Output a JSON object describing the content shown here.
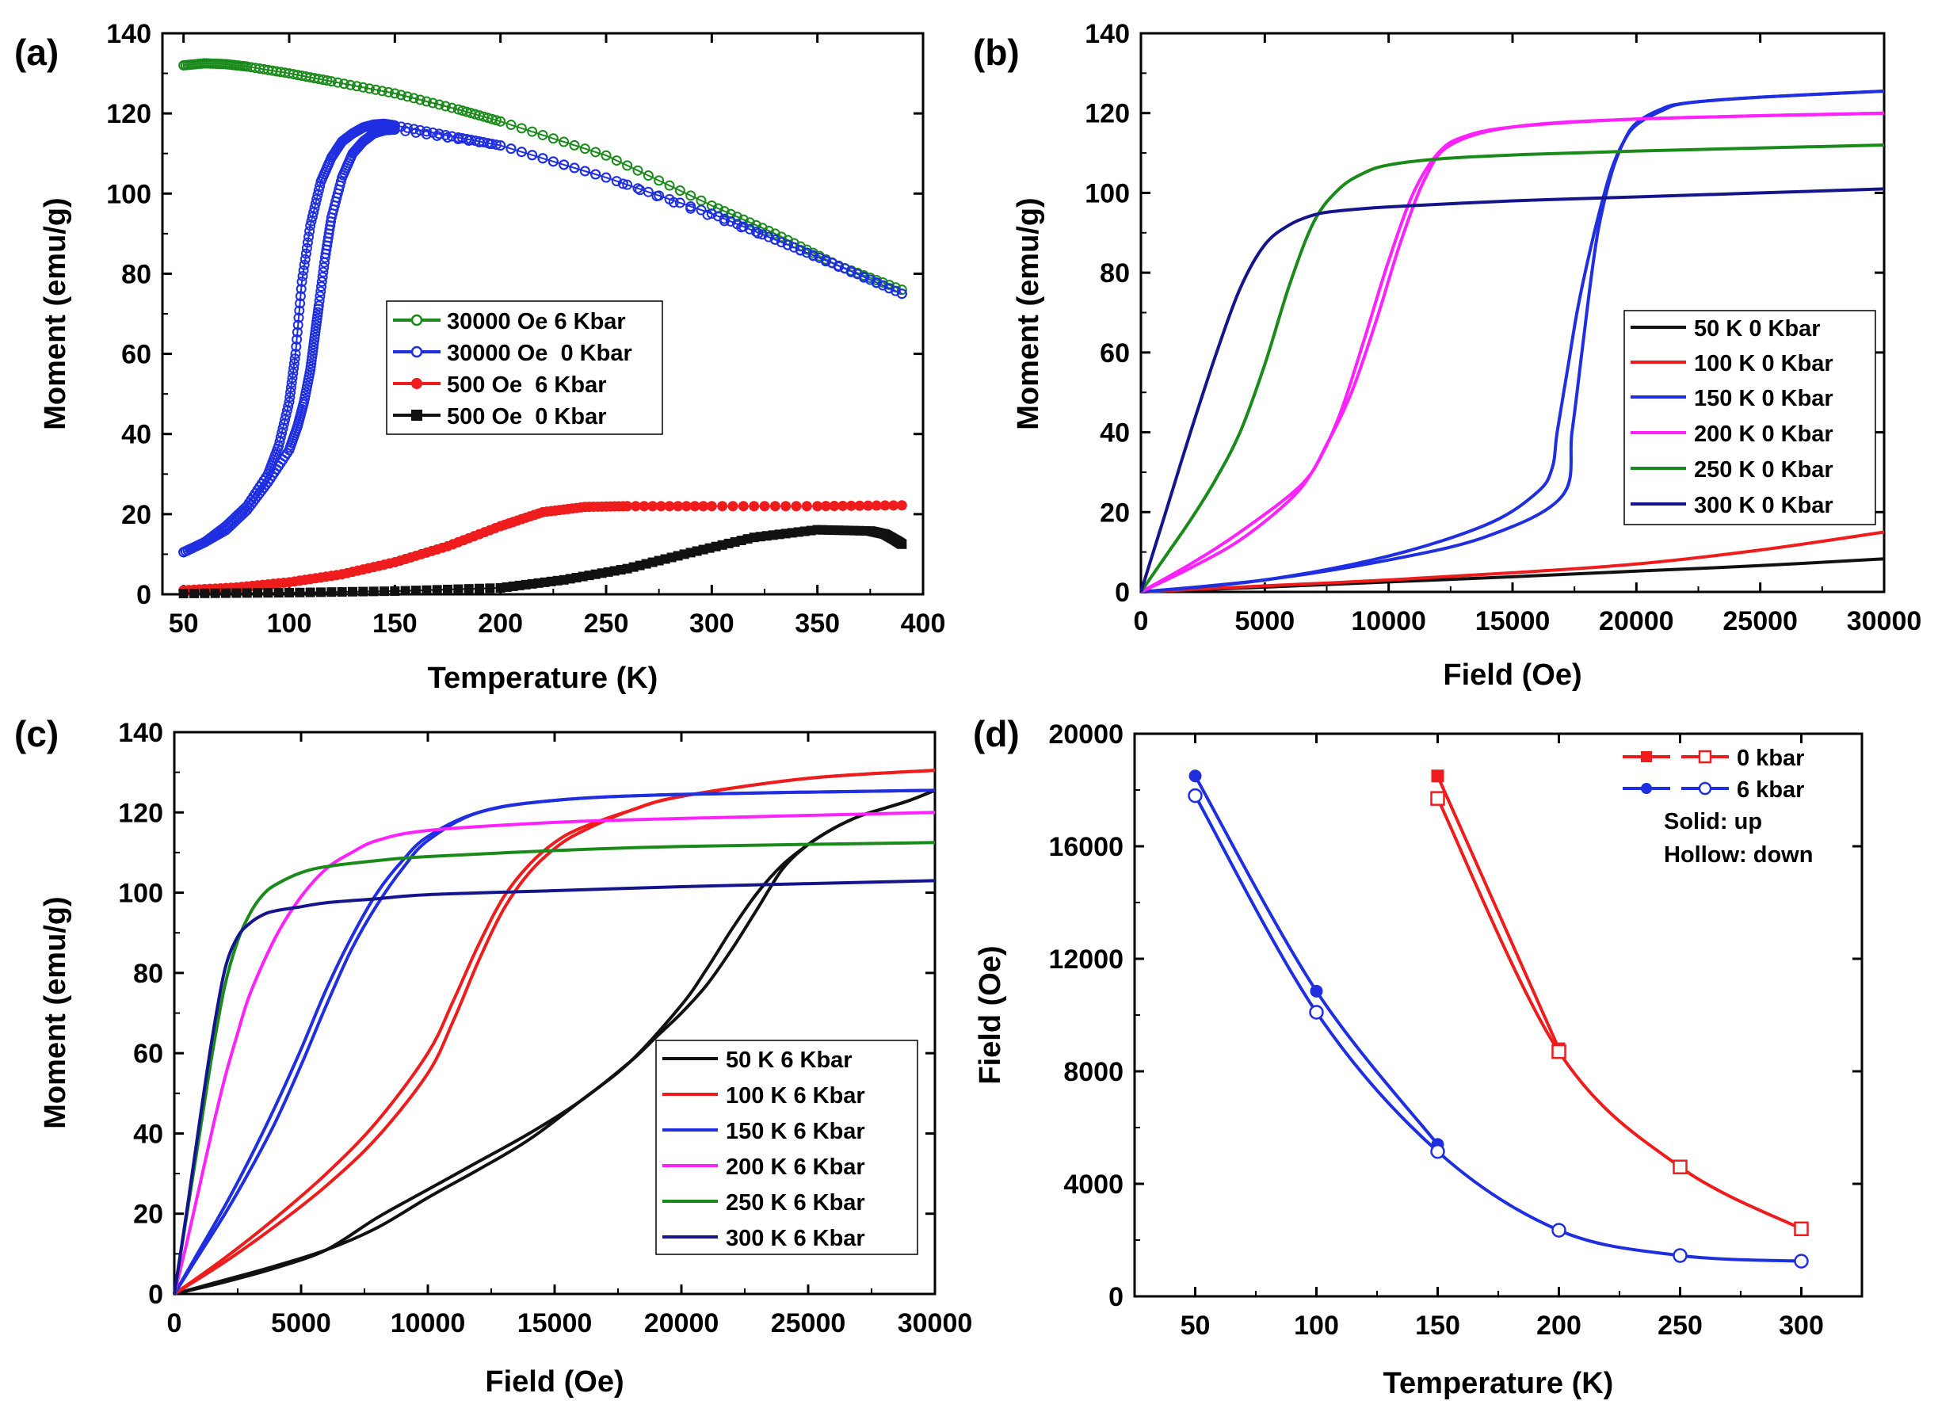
{
  "chart_data": [
    {
      "panel": "(a)",
      "type": "scatter",
      "xlabel": "Temperature (K)",
      "ylabel": "Moment (emu/g)",
      "xlim": [
        40,
        400
      ],
      "ylim": [
        0,
        140
      ],
      "xticks": [
        50,
        100,
        150,
        200,
        250,
        300,
        350,
        400
      ],
      "yticks": [
        0,
        20,
        40,
        60,
        80,
        100,
        120,
        140
      ],
      "legend_position": "center",
      "series": [
        {
          "name": "30000 Oe 6 Kbar",
          "color": "#1a8a1a",
          "marker": "open-circle",
          "x": [
            50,
            60,
            70,
            80,
            100,
            120,
            150,
            180,
            200,
            250,
            300,
            330,
            360,
            390
          ],
          "y": [
            132,
            132.5,
            132.3,
            131.7,
            130,
            128,
            125,
            121,
            118,
            109.5,
            97,
            90,
            82,
            76
          ]
        },
        {
          "name": "30000 Oe  0 Kbar",
          "color": "#1f2fe0",
          "marker": "open-circle",
          "x": [
            50,
            60,
            70,
            80,
            90,
            95,
            100,
            103,
            106,
            110,
            115,
            120,
            125,
            130,
            135,
            140,
            145,
            150,
            180,
            200,
            250,
            300,
            330,
            360,
            390
          ],
          "y": [
            10.5,
            13,
            17,
            22,
            30,
            37,
            48,
            60,
            78,
            92,
            103,
            109,
            113,
            115,
            116.5,
            117.2,
            117.4,
            117,
            114,
            112,
            104,
            95,
            88.5,
            82,
            75
          ],
          "x_return": [
            390,
            330,
            250,
            200,
            150,
            145,
            140,
            135,
            130,
            125,
            120,
            117,
            114,
            112,
            110,
            107,
            104,
            100,
            90,
            80,
            70,
            60,
            50
          ],
          "y_return": [
            75,
            88.5,
            104,
            112,
            116,
            115.8,
            115,
            113,
            110,
            104,
            94,
            84,
            72,
            64,
            56,
            48,
            42,
            36,
            28,
            21,
            16,
            13,
            10.5
          ]
        },
        {
          "name": "500 Oe  6 Kbar",
          "color": "#ee1c1c",
          "marker": "filled-circle",
          "x": [
            50,
            75,
            100,
            125,
            150,
            175,
            200,
            220,
            240,
            260,
            300,
            350,
            390
          ],
          "y": [
            1,
            1.7,
            3,
            5,
            8,
            12,
            17,
            20.5,
            21.8,
            22,
            22,
            22,
            22.2
          ]
        },
        {
          "name": "500 Oe  0 Kbar",
          "color": "#111111",
          "marker": "filled-square",
          "x": [
            50,
            100,
            150,
            200,
            230,
            260,
            290,
            320,
            350,
            375,
            382,
            387,
            390
          ],
          "y": [
            0.2,
            0.4,
            0.8,
            1.6,
            3.6,
            6.4,
            10.4,
            14.2,
            16.1,
            15.8,
            15,
            13.5,
            12.5
          ]
        }
      ]
    },
    {
      "panel": "(b)",
      "type": "line",
      "xlabel": "Field (Oe)",
      "ylabel": "Moment (emu/g)",
      "xlim": [
        0,
        30000
      ],
      "ylim": [
        0,
        140
      ],
      "xticks": [
        0,
        5000,
        10000,
        15000,
        20000,
        25000,
        30000
      ],
      "yticks": [
        0,
        20,
        40,
        60,
        80,
        100,
        120,
        140
      ],
      "legend_position": "right",
      "series": [
        {
          "name": "50 K 0 Kbar",
          "color": "#111111",
          "x": [
            0,
            5000,
            10000,
            15000,
            20000,
            25000,
            30000
          ],
          "y": [
            0,
            1.2,
            2.5,
            3.8,
            5.2,
            6.6,
            8.3
          ]
        },
        {
          "name": "100 K 0 Kbar",
          "color": "#ee1c1c",
          "x": [
            0,
            5000,
            10000,
            15000,
            20000,
            25000,
            30000
          ],
          "y": [
            0,
            1.5,
            3,
            4.8,
            7,
            10.5,
            15
          ]
        },
        {
          "name": "150 K 0 Kbar",
          "color": "#1f2fe0",
          "x": [
            0,
            5000,
            10000,
            14000,
            16000,
            16600,
            16800,
            17200,
            17600,
            18000,
            18500,
            19000,
            19500,
            20000,
            21000,
            22000,
            25000,
            30000
          ],
          "y": [
            0,
            3,
            9,
            17,
            25,
            31,
            40,
            55,
            70,
            82,
            95,
            106,
            113,
            117,
            120.5,
            122.5,
            124,
            125.5
          ],
          "x_return": [
            30000,
            25000,
            22000,
            21000,
            20000,
            19500,
            19000,
            18500,
            18200,
            17800,
            17400,
            17000,
            14000,
            10000,
            5000,
            0
          ],
          "y_return": [
            125.5,
            124,
            122.5,
            121,
            117.5,
            113,
            105,
            92,
            80,
            60,
            40,
            24,
            14,
            8,
            3,
            0
          ]
        },
        {
          "name": "200 K 0 Kbar",
          "color": "#ff22ff",
          "x": [
            0,
            2000,
            4000,
            6000,
            7000,
            8000,
            9000,
            10000,
            11000,
            12000,
            13000,
            15000,
            20000,
            30000
          ],
          "y": [
            0,
            6,
            13,
            23,
            31,
            44,
            63,
            83,
            100,
            110,
            114,
            116.5,
            118.5,
            120
          ],
          "x_return": [
            30000,
            20000,
            15000,
            12500,
            11500,
            10500,
            9500,
            8500,
            7500,
            6500,
            4000,
            2000,
            0
          ],
          "y_return": [
            120,
            118.5,
            116.5,
            112,
            104,
            88,
            68,
            50,
            37,
            27,
            15,
            7,
            0
          ]
        },
        {
          "name": "250 K 0 Kbar",
          "color": "#1a8a1a",
          "x": [
            0,
            1000,
            2000,
            3000,
            4000,
            5000,
            6000,
            7000,
            8000,
            9000,
            10000,
            12000,
            15000,
            20000,
            30000
          ],
          "y": [
            0,
            9,
            18,
            28,
            40,
            57,
            77,
            93,
            101,
            105,
            107,
            108.5,
            109.5,
            110.5,
            112
          ]
        },
        {
          "name": "300 K 0 Kbar",
          "color": "#14148c",
          "x": [
            0,
            500,
            1000,
            2000,
            3000,
            4000,
            5000,
            6000,
            7000,
            8000,
            10000,
            15000,
            20000,
            30000
          ],
          "y": [
            0,
            10,
            20,
            40,
            59,
            76,
            87,
            92,
            94.5,
            95.5,
            96.5,
            98,
            99,
            101
          ]
        }
      ]
    },
    {
      "panel": "(c)",
      "type": "line",
      "xlabel": "Field (Oe)",
      "ylabel": "Moment (emu/g)",
      "xlim": [
        0,
        30000
      ],
      "ylim": [
        0,
        140
      ],
      "xticks": [
        0,
        5000,
        10000,
        15000,
        20000,
        25000,
        30000
      ],
      "yticks": [
        0,
        20,
        40,
        60,
        80,
        100,
        120,
        140
      ],
      "legend_position": "bottom-right",
      "series": [
        {
          "name": "50 K 6 Kbar",
          "color": "#111111",
          "x": [
            0,
            2000,
            4000,
            6000,
            8000,
            10000,
            12000,
            14000,
            16000,
            18000,
            20000,
            21000,
            22000,
            23000,
            24000,
            25000,
            26000,
            27000,
            28000,
            29000,
            30000
          ],
          "y": [
            0,
            3.5,
            7,
            11,
            16.5,
            24,
            31,
            38.5,
            48,
            58,
            72,
            81,
            91,
            100,
            107,
            112,
            116,
            119,
            121,
            123,
            125.5
          ],
          "x_return": [
            30000,
            29000,
            28000,
            27000,
            26000,
            25000,
            24000,
            23000,
            22000,
            21000,
            20000,
            19000,
            18000,
            16000,
            14000,
            12000,
            10000,
            8000,
            6000,
            4000,
            2000,
            0
          ],
          "y_return": [
            125.5,
            123,
            121,
            119,
            116,
            112,
            106,
            96,
            86,
            77,
            70,
            64,
            58,
            48,
            40,
            33,
            26,
            19,
            11,
            6.5,
            3,
            0
          ]
        },
        {
          "name": "100 K 6 Kbar",
          "color": "#ee1c1c",
          "x": [
            0,
            2000,
            4000,
            6000,
            8000,
            10000,
            11000,
            12000,
            13000,
            14000,
            15000,
            16000,
            18000,
            20000,
            25000,
            30000
          ],
          "y": [
            0,
            8,
            17,
            27,
            39,
            55,
            68,
            83,
            96,
            105,
            111,
            115,
            120.5,
            124,
            128.5,
            130.5
          ],
          "x_return": [
            30000,
            25000,
            20000,
            18000,
            16000,
            15000,
            14000,
            13000,
            12000,
            11000,
            10000,
            8000,
            6000,
            4000,
            2000,
            0
          ],
          "y_return": [
            130.5,
            128.5,
            124,
            120.5,
            116,
            112.5,
            107,
            99,
            87,
            73,
            60,
            43,
            30,
            19,
            9,
            0
          ]
        },
        {
          "name": "150 K 6 Kbar",
          "color": "#1f2fe0",
          "x": [
            0,
            1000,
            2000,
            3000,
            4000,
            5000,
            6000,
            7000,
            8000,
            9000,
            10000,
            12000,
            15000,
            20000,
            30000
          ],
          "y": [
            0,
            10,
            20,
            31,
            43,
            57,
            72,
            86,
            97,
            106,
            113,
            120,
            123,
            124.5,
            125.5
          ],
          "x_return": [
            30000,
            20000,
            15000,
            12000,
            10000,
            9000,
            8000,
            7000,
            6000,
            5000,
            4000,
            3000,
            2000,
            1000,
            0
          ],
          "y_return": [
            125.5,
            124.5,
            123,
            120,
            114,
            108,
            100,
            89,
            76,
            61,
            47,
            34,
            22,
            11,
            0
          ]
        },
        {
          "name": "200 K 6 Kbar",
          "color": "#ff22ff",
          "x": [
            0,
            500,
            1000,
            1500,
            2000,
            2500,
            3000,
            4000,
            5000,
            6000,
            7000,
            8000,
            10000,
            15000,
            20000,
            30000
          ],
          "y": [
            0,
            13,
            27,
            41,
            54,
            65,
            75,
            89,
            99,
            106,
            110,
            113,
            115.5,
            117.5,
            118.5,
            120
          ]
        },
        {
          "name": "250 K 6 Kbar",
          "color": "#1a8a1a",
          "x": [
            0,
            500,
            1000,
            1500,
            2000,
            2500,
            3000,
            3500,
            4000,
            5000,
            6000,
            8000,
            10000,
            15000,
            20000,
            30000
          ],
          "y": [
            0,
            20,
            40,
            60,
            77,
            88,
            95,
            99.5,
            102,
            105,
            106.5,
            108,
            109,
            110.5,
            111.5,
            112.5
          ]
        },
        {
          "name": "300 K 6 Kbar",
          "color": "#14148c",
          "x": [
            0,
            500,
            1000,
            1500,
            2000,
            2500,
            3000,
            3500,
            4000,
            5000,
            6000,
            8000,
            10000,
            15000,
            20000,
            30000
          ],
          "y": [
            0,
            21,
            43,
            64,
            81,
            89,
            92.5,
            94.5,
            95.5,
            96.5,
            97.5,
            98.5,
            99.5,
            100.5,
            101.5,
            103
          ]
        }
      ]
    },
    {
      "panel": "(d)",
      "type": "line",
      "xlabel": "Temperature (K)",
      "ylabel": "Field (Oe)",
      "xlim": [
        25,
        325
      ],
      "ylim": [
        0,
        20000
      ],
      "xticks": [
        50,
        100,
        150,
        200,
        250,
        300
      ],
      "yticks": [
        0,
        4000,
        8000,
        12000,
        16000,
        20000
      ],
      "legend_position": "top-right",
      "legend_notes": [
        "Solid: up",
        "Hollow: down"
      ],
      "series": [
        {
          "name": "0 kbar",
          "color": "#ee1c1c",
          "up": {
            "x": [
              150,
              200
            ],
            "y": [
              18500,
              8800
            ],
            "marker": "filled-square"
          },
          "down": {
            "x": [
              150,
              200,
              250,
              300
            ],
            "y": [
              17700,
              8700,
              4600,
              2400
            ],
            "marker": "open-square"
          }
        },
        {
          "name": "6 kbar",
          "color": "#1f2fe0",
          "up": {
            "x": [
              50,
              100,
              150
            ],
            "y": [
              18500,
              10850,
              5400
            ],
            "marker": "filled-circle"
          },
          "down": {
            "x": [
              50,
              100,
              150,
              200,
              250,
              300
            ],
            "y": [
              17800,
              10100,
              5150,
              2350,
              1450,
              1250
            ],
            "marker": "open-circle"
          }
        }
      ]
    }
  ]
}
